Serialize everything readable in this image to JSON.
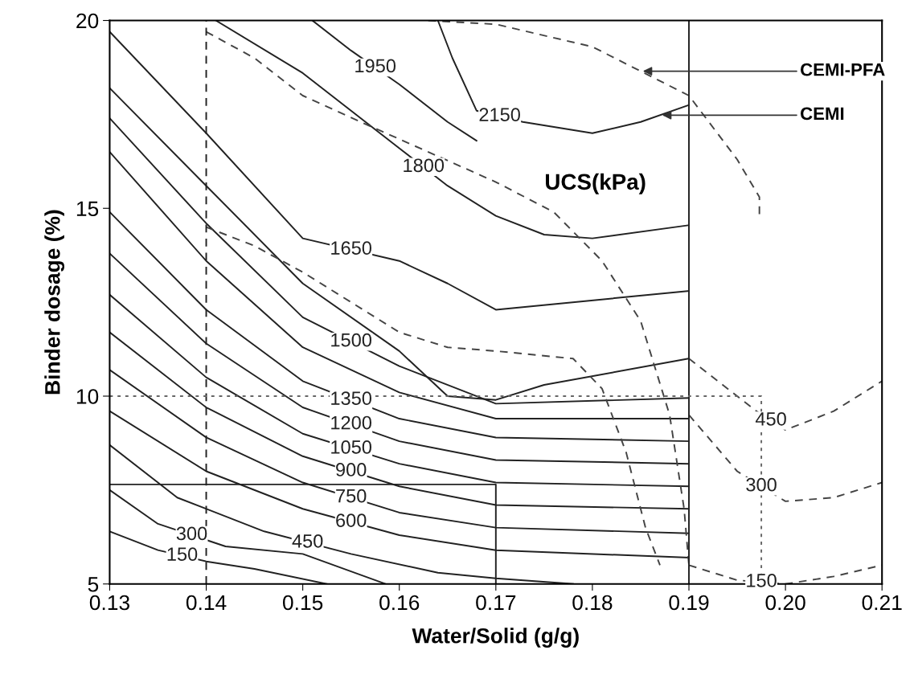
{
  "chart_data": {
    "type": "line",
    "xlabel": "Water/Solid (g/g)",
    "ylabel": "Binder dosage (%)",
    "xlim": [
      0.13,
      0.21
    ],
    "xticks": [
      {
        "value": 0.13,
        "label": "0.13"
      },
      {
        "value": 0.14,
        "label": "0.14"
      },
      {
        "value": 0.15,
        "label": "0.15"
      },
      {
        "value": 0.16,
        "label": "0.16"
      },
      {
        "value": 0.17,
        "label": "0.17"
      },
      {
        "value": 0.18,
        "label": "0.18"
      },
      {
        "value": 0.19,
        "label": "0.19"
      },
      {
        "value": 0.2,
        "label": "0.20"
      },
      {
        "value": 0.21,
        "label": "0.21"
      }
    ],
    "ylim": [
      5,
      20
    ],
    "yticks": [
      5,
      10,
      15,
      20
    ],
    "grid": false,
    "marker": "none",
    "series": [
      {
        "name": "150",
        "color": "#222222",
        "line_style": "solid",
        "x": [
          0.13,
          0.135,
          0.14,
          0.145,
          0.1525
        ],
        "values": [
          6.4,
          5.9,
          5.6,
          5.4,
          5.0
        ]
      },
      {
        "name": "300",
        "color": "#222222",
        "line_style": "solid",
        "x": [
          0.13,
          0.135,
          0.142,
          0.15,
          0.1586
        ],
        "values": [
          7.5,
          6.6,
          6.0,
          5.8,
          5.0
        ]
      },
      {
        "name": "450",
        "color": "#222222",
        "line_style": "solid",
        "x": [
          0.13,
          0.137,
          0.146,
          0.155,
          0.164,
          0.17,
          0.178
        ],
        "values": [
          8.7,
          7.3,
          6.4,
          5.8,
          5.3,
          5.15,
          5.0
        ]
      },
      {
        "name": "600",
        "color": "#222222",
        "line_style": "solid",
        "x": [
          0.13,
          0.14,
          0.15,
          0.16,
          0.17,
          0.19
        ],
        "values": [
          9.6,
          8.0,
          7.0,
          6.3,
          5.9,
          5.7
        ]
      },
      {
        "name": "750",
        "color": "#222222",
        "line_style": "solid",
        "x": [
          0.13,
          0.14,
          0.15,
          0.16,
          0.17,
          0.19
        ],
        "values": [
          10.7,
          8.9,
          7.7,
          6.9,
          6.5,
          6.35
        ]
      },
      {
        "name": "900",
        "color": "#222222",
        "line_style": "solid",
        "x": [
          0.13,
          0.14,
          0.15,
          0.16,
          0.17,
          0.19
        ],
        "values": [
          11.7,
          9.7,
          8.4,
          7.6,
          7.1,
          7.0
        ]
      },
      {
        "name": "1050",
        "color": "#222222",
        "line_style": "solid",
        "x": [
          0.13,
          0.14,
          0.15,
          0.16,
          0.17,
          0.19
        ],
        "values": [
          12.7,
          10.5,
          9.0,
          8.2,
          7.7,
          7.6
        ]
      },
      {
        "name": "1200",
        "color": "#222222",
        "line_style": "solid",
        "x": [
          0.13,
          0.14,
          0.15,
          0.16,
          0.17,
          0.19
        ],
        "values": [
          13.8,
          11.4,
          9.7,
          8.8,
          8.3,
          8.2
        ]
      },
      {
        "name": "1350",
        "color": "#222222",
        "line_style": "solid",
        "x": [
          0.13,
          0.14,
          0.15,
          0.16,
          0.17,
          0.19
        ],
        "values": [
          14.9,
          12.3,
          10.4,
          9.4,
          8.9,
          8.8
        ]
      },
      {
        "color": "#222222",
        "line_style": "solid",
        "x": [
          0.13,
          0.14,
          0.15,
          0.16,
          0.17,
          0.19
        ],
        "values": [
          16.5,
          13.6,
          11.3,
          10.1,
          9.4,
          9.4
        ]
      },
      {
        "name": "1500",
        "color": "#222222",
        "line_style": "solid",
        "x": [
          0.13,
          0.14,
          0.15,
          0.16,
          0.17,
          0.19
        ],
        "values": [
          17.4,
          14.6,
          12.1,
          10.8,
          9.8,
          9.95
        ]
      },
      {
        "color": "#222222",
        "line_style": "solid",
        "x": [
          0.13,
          0.14,
          0.15,
          0.16,
          0.165,
          0.17,
          0.175,
          0.19
        ],
        "values": [
          18.2,
          15.6,
          13.0,
          11.2,
          10.0,
          9.9,
          10.3,
          11.0
        ]
      },
      {
        "name": "1650",
        "color": "#222222",
        "line_style": "solid",
        "x": [
          0.13,
          0.14,
          0.15,
          0.16,
          0.165,
          0.17,
          0.19
        ],
        "values": [
          19.7,
          17.0,
          14.2,
          13.6,
          13.0,
          12.3,
          12.8
        ]
      },
      {
        "name": "1800",
        "color": "#222222",
        "line_style": "solid",
        "x": [
          0.141,
          0.15,
          0.155,
          0.16,
          0.165,
          0.17,
          0.175,
          0.18,
          0.19
        ],
        "values": [
          20.0,
          18.6,
          17.6,
          16.6,
          15.6,
          14.8,
          14.3,
          14.2,
          14.55
        ]
      },
      {
        "name": "1950",
        "color": "#222222",
        "line_style": "solid",
        "x": [
          0.151,
          0.155,
          0.16,
          0.165,
          0.168
        ],
        "values": [
          20.0,
          19.2,
          18.3,
          17.3,
          16.8
        ]
      },
      {
        "name": "2150",
        "color": "#222222",
        "line_style": "solid",
        "x": [
          0.164,
          0.1655,
          0.168,
          0.1728,
          0.18,
          0.185,
          0.19
        ],
        "values": [
          20.0,
          19.0,
          17.6,
          17.3,
          17.0,
          17.3,
          17.75
        ]
      },
      {
        "color": "#444444",
        "line_style": "dashed",
        "x": [
          0.14,
          0.145,
          0.15,
          0.156,
          0.163,
          0.17,
          0.176,
          0.181,
          0.185,
          0.188,
          0.1895,
          0.19
        ],
        "values": [
          19.7,
          19.0,
          18.0,
          17.3,
          16.5,
          15.7,
          14.9,
          13.6,
          12.0,
          9.5,
          7.0,
          5.5
        ]
      },
      {
        "color": "#444444",
        "line_style": "dashed",
        "x": [
          0.14,
          0.145,
          0.15,
          0.155,
          0.16,
          0.165,
          0.17,
          0.178,
          0.181,
          0.1835,
          0.1855,
          0.187
        ],
        "values": [
          14.5,
          14.0,
          13.3,
          12.5,
          11.7,
          11.3,
          11.2,
          11.0,
          10.2,
          8.5,
          6.5,
          5.5
        ]
      },
      {
        "color": "#444444",
        "line_style": "dashed",
        "x": [
          0.163,
          0.17,
          0.18,
          0.19,
          0.195,
          0.1973,
          0.1973
        ],
        "values": [
          20.0,
          19.9,
          19.3,
          18.0,
          16.3,
          15.3,
          14.8
        ]
      },
      {
        "name": "450",
        "color": "#444444",
        "line_style": "dashed",
        "x": [
          0.19,
          0.194,
          0.197,
          0.2,
          0.205,
          0.21
        ],
        "values": [
          11.0,
          10.2,
          9.6,
          9.1,
          9.6,
          10.4
        ]
      },
      {
        "name": "300",
        "color": "#444444",
        "line_style": "dashed",
        "x": [
          0.19,
          0.195,
          0.2,
          0.205,
          0.21
        ],
        "values": [
          9.5,
          8.0,
          7.2,
          7.3,
          7.7
        ]
      },
      {
        "name": "150",
        "color": "#444444",
        "line_style": "dashed",
        "x": [
          0.19,
          0.195,
          0.2,
          0.205,
          0.21
        ],
        "values": [
          5.5,
          5.1,
          5.0,
          5.2,
          5.5
        ]
      },
      {
        "color": "#222222",
        "line_style": "solid",
        "x": [
          0.19,
          0.19
        ],
        "values": [
          5.0,
          20.0
        ]
      },
      {
        "color": "#222222",
        "line_style": "dashed",
        "x": [
          0.14,
          0.14
        ],
        "values": [
          5.0,
          20.0
        ]
      },
      {
        "color": "#222222",
        "line_style": "solid",
        "x": [
          0.13,
          0.17,
          0.17
        ],
        "values": [
          7.65,
          7.65,
          5.0
        ]
      },
      {
        "color": "#666666",
        "line_style": "dotted",
        "x": [
          0.13,
          0.1975,
          0.1975
        ],
        "values": [
          10.0,
          10.0,
          5.0
        ]
      }
    ],
    "annotations": [
      "UCS(kPa)",
      {
        "text": "CEMI-PFA",
        "x": 0.185,
        "y": 18.65
      },
      {
        "text": "CEMI",
        "x": 0.187,
        "y": 17.48
      }
    ]
  }
}
